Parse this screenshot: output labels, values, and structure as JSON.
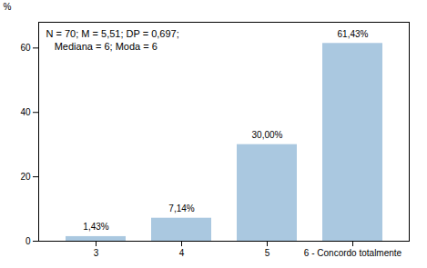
{
  "chart_data": {
    "type": "bar",
    "categories": [
      "3",
      "4",
      "5",
      "6 - Concordo totalmente"
    ],
    "values": [
      1.43,
      7.14,
      30.0,
      61.43
    ],
    "value_labels": [
      "1,43%",
      "7,14%",
      "30,00%",
      "61,43%"
    ],
    "data_labels": true,
    "color": "#aac8e0",
    "ylabel": "%",
    "ylim": [
      0,
      68
    ],
    "yticks": [
      0,
      20,
      40,
      60
    ],
    "grid": false,
    "annotations": [
      "N = 70; M = 5,51; DP = 0,697;",
      "   Mediana = 6; Moda = 6"
    ]
  }
}
